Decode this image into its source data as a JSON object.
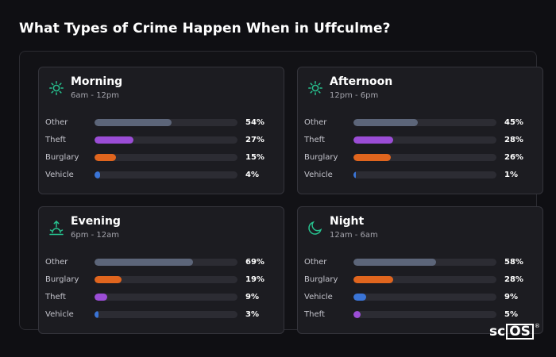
{
  "title": "What Types of Crime Happen When in Uffculme?",
  "logo": {
    "prefix": "sc",
    "boxed": "OS",
    "mark": "®"
  },
  "colors": {
    "Other": "#5c6579",
    "Theft": "#9b4dd6",
    "Burglary": "#e0651e",
    "Vehicle": "#3a74d6",
    "icon": "#27c28f"
  },
  "chart_data": [
    {
      "type": "bar",
      "orientation": "horizontal",
      "title": "Morning",
      "subtitle": "6am - 12pm",
      "icon": "sun-icon",
      "xlim": [
        0,
        100
      ],
      "categories": [
        "Other",
        "Theft",
        "Burglary",
        "Vehicle"
      ],
      "values": [
        54,
        27,
        15,
        4
      ],
      "labels": [
        "54%",
        "27%",
        "15%",
        "4%"
      ]
    },
    {
      "type": "bar",
      "orientation": "horizontal",
      "title": "Afternoon",
      "subtitle": "12pm - 6pm",
      "icon": "sun-icon",
      "xlim": [
        0,
        100
      ],
      "categories": [
        "Other",
        "Theft",
        "Burglary",
        "Vehicle"
      ],
      "values": [
        45,
        28,
        26,
        1
      ],
      "labels": [
        "45%",
        "28%",
        "26%",
        "1%"
      ]
    },
    {
      "type": "bar",
      "orientation": "horizontal",
      "title": "Evening",
      "subtitle": "6pm - 12am",
      "icon": "sunset-icon",
      "xlim": [
        0,
        100
      ],
      "categories": [
        "Other",
        "Burglary",
        "Theft",
        "Vehicle"
      ],
      "values": [
        69,
        19,
        9,
        3
      ],
      "labels": [
        "69%",
        "19%",
        "9%",
        "3%"
      ]
    },
    {
      "type": "bar",
      "orientation": "horizontal",
      "title": "Night",
      "subtitle": "12am - 6am",
      "icon": "moon-icon",
      "xlim": [
        0,
        100
      ],
      "categories": [
        "Other",
        "Burglary",
        "Vehicle",
        "Theft"
      ],
      "values": [
        58,
        28,
        9,
        5
      ],
      "labels": [
        "58%",
        "28%",
        "9%",
        "5%"
      ]
    }
  ]
}
